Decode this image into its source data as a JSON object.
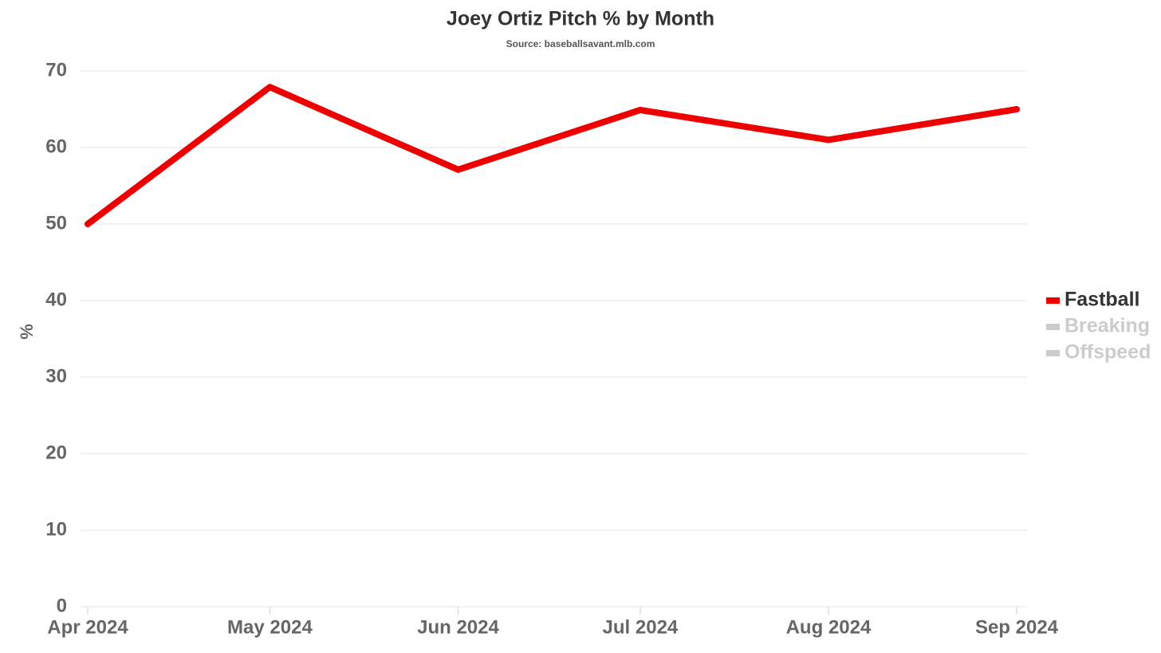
{
  "chart_data": {
    "type": "line",
    "title": "Joey Ortiz Pitch % by Month",
    "subtitle": "Source: baseballsavant.mlb.com",
    "y_label": "%",
    "categories": [
      "Apr 2024",
      "May 2024",
      "Jun 2024",
      "Jul 2024",
      "Aug 2024",
      "Sep 2024"
    ],
    "series": [
      {
        "name": "Fastball",
        "color": "#ee0000",
        "visible": true,
        "values": [
          50,
          67.9,
          57.1,
          64.9,
          61,
          65
        ]
      },
      {
        "name": "Breaking",
        "color": "#cccccc",
        "visible": false,
        "values": [
          null,
          null,
          null,
          null,
          null,
          null
        ]
      },
      {
        "name": "Offspeed",
        "color": "#cccccc",
        "visible": false,
        "values": [
          null,
          null,
          null,
          null,
          null,
          null
        ]
      }
    ],
    "ylim": [
      0,
      70
    ],
    "yticks": [
      0,
      10,
      20,
      30,
      40,
      50,
      60,
      70
    ],
    "grid": true,
    "legend": "right"
  }
}
